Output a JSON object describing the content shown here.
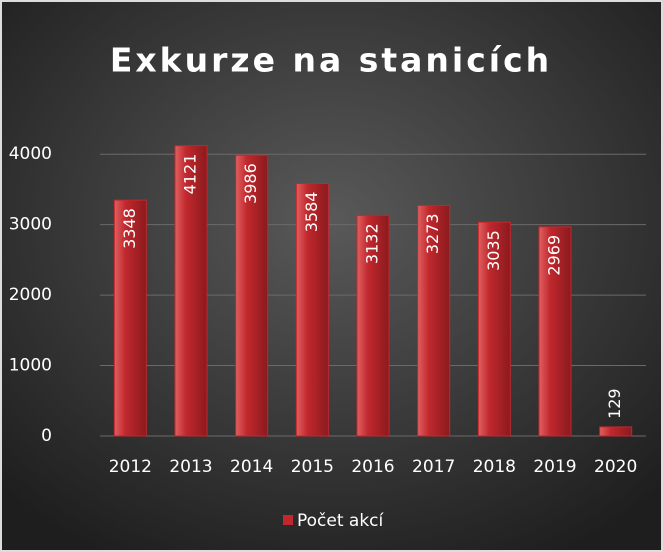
{
  "chart_data": {
    "type": "bar",
    "title": "Exkurze na stanicích",
    "categories": [
      "2012",
      "2013",
      "2014",
      "2015",
      "2016",
      "2017",
      "2018",
      "2019",
      "2020"
    ],
    "series": [
      {
        "name": "Počet akcí",
        "color": "#c0282d",
        "values": [
          3348,
          4121,
          3986,
          3584,
          3132,
          3273,
          3035,
          2969,
          129
        ]
      }
    ],
    "ylim": [
      0,
      4500
    ],
    "yticks": [
      0,
      1000,
      2000,
      3000,
      4000
    ],
    "grid": true,
    "legend": "bottom"
  }
}
